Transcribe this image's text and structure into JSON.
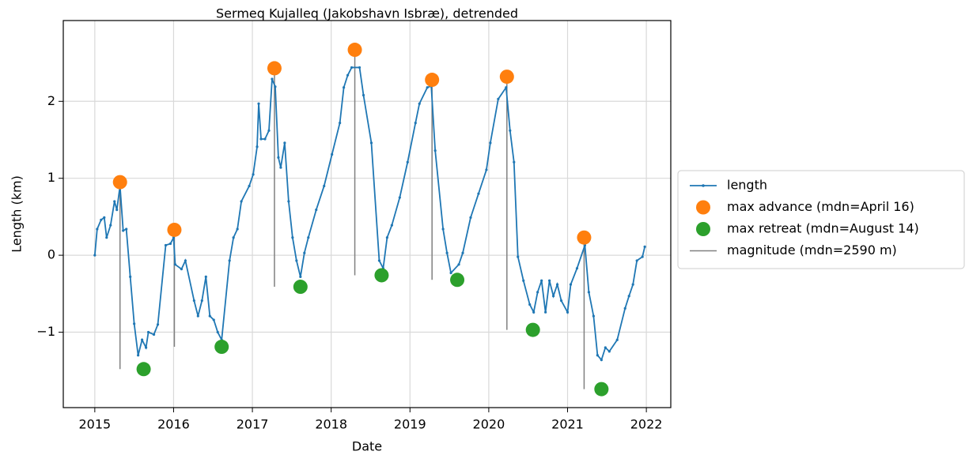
{
  "chart_data": {
    "type": "line",
    "title": "Sermeq Kujalleq (Jakobshavn Isbræ), detrended",
    "xlabel": "Date",
    "ylabel": "Length (km)",
    "xlim": [
      2014.6,
      2022.31
    ],
    "xticks": [
      2015,
      2016,
      2017,
      2018,
      2019,
      2020,
      2021,
      2022
    ],
    "ylim": [
      -1.98,
      3.05
    ],
    "yticks": [
      {
        "value": -1,
        "label": "−1"
      },
      0,
      1,
      2
    ],
    "grid": true,
    "legend": "outside right",
    "series": [
      {
        "name": "length",
        "color": "#1f77b4",
        "x": [
          2015.0,
          2015.03,
          2015.08,
          2015.12,
          2015.15,
          2015.2,
          2015.25,
          2015.28,
          2015.32,
          2015.36,
          2015.4,
          2015.45,
          2015.5,
          2015.55,
          2015.6,
          2015.65,
          2015.68,
          2015.75,
          2015.8,
          2015.9,
          2015.96,
          2016.0,
          2016.02,
          2016.1,
          2016.15,
          2016.26,
          2016.31,
          2016.36,
          2016.41,
          2016.46,
          2016.51,
          2016.56,
          2016.61,
          2016.71,
          2016.76,
          2016.81,
          2016.86,
          2016.96,
          2017.01,
          2017.06,
          2017.08,
          2017.11,
          2017.16,
          2017.21,
          2017.25,
          2017.29,
          2017.33,
          2017.36,
          2017.41,
          2017.46,
          2017.51,
          2017.56,
          2017.61,
          2017.66,
          2017.71,
          2017.81,
          2017.91,
          2018.01,
          2018.11,
          2018.16,
          2018.21,
          2018.26,
          2018.36,
          2018.41,
          2018.51,
          2018.61,
          2018.66,
          2018.71,
          2018.77,
          2018.87,
          2018.97,
          2019.07,
          2019.12,
          2019.22,
          2019.27,
          2019.32,
          2019.42,
          2019.47,
          2019.52,
          2019.62,
          2019.67,
          2019.77,
          2019.87,
          2019.97,
          2020.02,
          2020.12,
          2020.22,
          2020.27,
          2020.32,
          2020.37,
          2020.44,
          2020.52,
          2020.57,
          2020.62,
          2020.67,
          2020.72,
          2020.77,
          2020.82,
          2020.87,
          2020.92,
          2021.0,
          2021.04,
          2021.12,
          2021.22,
          2021.27,
          2021.33,
          2021.38,
          2021.43,
          2021.48,
          2021.53,
          2021.63,
          2021.73,
          2021.78,
          2021.83,
          2021.88,
          2021.95,
          2021.98
        ],
        "values": [
          0.0,
          0.34,
          0.46,
          0.49,
          0.23,
          0.39,
          0.7,
          0.59,
          0.9,
          0.32,
          0.34,
          -0.28,
          -0.89,
          -1.3,
          -1.1,
          -1.2,
          -1.0,
          -1.03,
          -0.9,
          0.13,
          0.15,
          0.23,
          -0.12,
          -0.18,
          -0.07,
          -0.59,
          -0.79,
          -0.59,
          -0.28,
          -0.79,
          -0.84,
          -1.0,
          -1.1,
          -0.07,
          0.23,
          0.34,
          0.7,
          0.9,
          1.05,
          1.41,
          1.97,
          1.51,
          1.51,
          1.62,
          2.29,
          2.19,
          1.27,
          1.14,
          1.46,
          0.7,
          0.23,
          -0.07,
          -0.28,
          0.03,
          0.23,
          0.59,
          0.9,
          1.31,
          1.72,
          2.18,
          2.34,
          2.44,
          2.44,
          2.08,
          1.46,
          -0.07,
          -0.17,
          0.23,
          0.39,
          0.75,
          1.21,
          1.72,
          1.97,
          2.18,
          2.2,
          1.36,
          0.34,
          0.03,
          -0.23,
          -0.12,
          0.03,
          0.49,
          0.8,
          1.11,
          1.46,
          2.03,
          2.18,
          1.62,
          1.21,
          -0.02,
          -0.33,
          -0.64,
          -0.74,
          -0.48,
          -0.33,
          -0.74,
          -0.33,
          -0.53,
          -0.38,
          -0.59,
          -0.74,
          -0.38,
          -0.17,
          0.13,
          -0.48,
          -0.79,
          -1.3,
          -1.36,
          -1.2,
          -1.25,
          -1.1,
          -0.69,
          -0.53,
          -0.38,
          -0.07,
          -0.02,
          0.11
        ]
      },
      {
        "name": "max advance (mdn=April 16)",
        "color": "#ff7f0e",
        "x": [
          2015.32,
          2016.01,
          2017.28,
          2018.3,
          2019.28,
          2020.23,
          2021.21
        ],
        "values": [
          0.95,
          0.33,
          2.43,
          2.67,
          2.28,
          2.32,
          0.23
        ]
      },
      {
        "name": "max retreat (mdn=August 14)",
        "color": "#2ca02c",
        "x": [
          2015.62,
          2016.61,
          2017.61,
          2018.64,
          2019.6,
          2020.56,
          2021.43
        ],
        "values": [
          -1.48,
          -1.19,
          -0.41,
          -0.26,
          -0.32,
          -0.97,
          -1.74
        ]
      },
      {
        "name": "magnitude (mdn=2590 m)",
        "color": "#808080"
      }
    ]
  }
}
